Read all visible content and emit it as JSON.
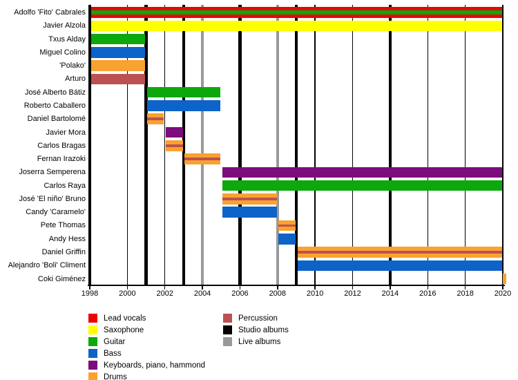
{
  "chart_data": {
    "type": "bar",
    "variant": "band-membership-timeline",
    "title": "",
    "x_axis": {
      "min": 1998,
      "max": 2020,
      "tick_years": [
        1998,
        2000,
        2002,
        2004,
        2006,
        2008,
        2010,
        2012,
        2014,
        2016,
        2018,
        2020
      ],
      "gridline_years": [
        1998,
        2000,
        2002,
        2004,
        2006,
        2008,
        2010,
        2012,
        2014,
        2016,
        2018,
        2020
      ]
    },
    "colors": {
      "lead_vocals": "#EE0202",
      "saxophone": "#FFFF00",
      "guitar": "#0CA80C",
      "bass": "#0E63C8",
      "keyboards": "#7D0C7D",
      "drums": "#F9A22F",
      "percussion": "#BC5151",
      "studio_album": "#000000",
      "live_album": "#999999"
    },
    "members": [
      {
        "name": "Adolfo 'Fito' Cabrales",
        "colors": [
          "lead_vocals",
          "guitar",
          "lead_vocals"
        ],
        "start": 1998,
        "end": 2020
      },
      {
        "name": "Javier Alzola",
        "colors": [
          "saxophone"
        ],
        "start": 1998,
        "end": 2020
      },
      {
        "name": "Txus Alday",
        "colors": [
          "guitar"
        ],
        "start": 1998,
        "end": 2001
      },
      {
        "name": "Miguel Colino",
        "colors": [
          "bass"
        ],
        "start": 1998,
        "end": 2001
      },
      {
        "name": "'Polako'",
        "colors": [
          "drums"
        ],
        "start": 1998,
        "end": 2001
      },
      {
        "name": "Arturo",
        "colors": [
          "percussion"
        ],
        "start": 1998,
        "end": 2001
      },
      {
        "name": "José Alberto Bátiz",
        "colors": [
          "guitar"
        ],
        "start": 2001,
        "end": 2005
      },
      {
        "name": "Roberto Caballero",
        "colors": [
          "bass"
        ],
        "start": 2001,
        "end": 2005
      },
      {
        "name": "Daniel Bartolomé",
        "colors": [
          "drums",
          "percussion",
          "drums"
        ],
        "start": 2001,
        "end": 2002
      },
      {
        "name": "Javier Mora",
        "colors": [
          "keyboards"
        ],
        "start": 2002,
        "end": 2003
      },
      {
        "name": "Carlos Bragas",
        "colors": [
          "drums",
          "percussion",
          "drums"
        ],
        "start": 2002,
        "end": 2003
      },
      {
        "name": "Fernan Irazoki",
        "colors": [
          "drums",
          "percussion",
          "drums"
        ],
        "start": 2003,
        "end": 2005
      },
      {
        "name": "Joserra Semperena",
        "colors": [
          "keyboards"
        ],
        "start": 2005,
        "end": 2020
      },
      {
        "name": "Carlos Raya",
        "colors": [
          "guitar"
        ],
        "start": 2005,
        "end": 2020
      },
      {
        "name": "José 'El niño' Bruno",
        "colors": [
          "drums",
          "percussion",
          "drums"
        ],
        "start": 2005,
        "end": 2008
      },
      {
        "name": "Candy 'Caramelo'",
        "colors": [
          "bass"
        ],
        "start": 2005,
        "end": 2008
      },
      {
        "name": "Pete Thomas",
        "colors": [
          "drums",
          "percussion",
          "drums"
        ],
        "start": 2008,
        "end": 2009
      },
      {
        "name": "Andy Hess",
        "colors": [
          "bass"
        ],
        "start": 2008,
        "end": 2009
      },
      {
        "name": "Daniel Griffin",
        "colors": [
          "drums",
          "percussion",
          "drums"
        ],
        "start": 2009,
        "end": 2020
      },
      {
        "name": "Alejandro 'Boli' Climent",
        "colors": [
          "bass"
        ],
        "start": 2009,
        "end": 2020
      },
      {
        "name": "Coki Giménez",
        "colors": [
          "drums"
        ],
        "start": 2020,
        "end": 2020.2
      }
    ],
    "album_lines": {
      "studio_years": [
        1998,
        2001,
        2003,
        2006,
        2009,
        2014
      ],
      "live_years": [
        2004,
        2008
      ]
    },
    "legend": {
      "column1": [
        {
          "label": "Lead vocals",
          "color_key": "lead_vocals"
        },
        {
          "label": "Saxophone",
          "color_key": "saxophone"
        },
        {
          "label": "Guitar",
          "color_key": "guitar"
        },
        {
          "label": "Bass",
          "color_key": "bass"
        },
        {
          "label": "Keyboards, piano, hammond",
          "color_key": "keyboards"
        },
        {
          "label": "Drums",
          "color_key": "drums"
        }
      ],
      "column2": [
        {
          "label": "Percussion",
          "color_key": "percussion"
        },
        {
          "label": "Studio albums",
          "color_key": "studio_album"
        },
        {
          "label": "Live albums",
          "color_key": "live_album"
        }
      ]
    }
  }
}
